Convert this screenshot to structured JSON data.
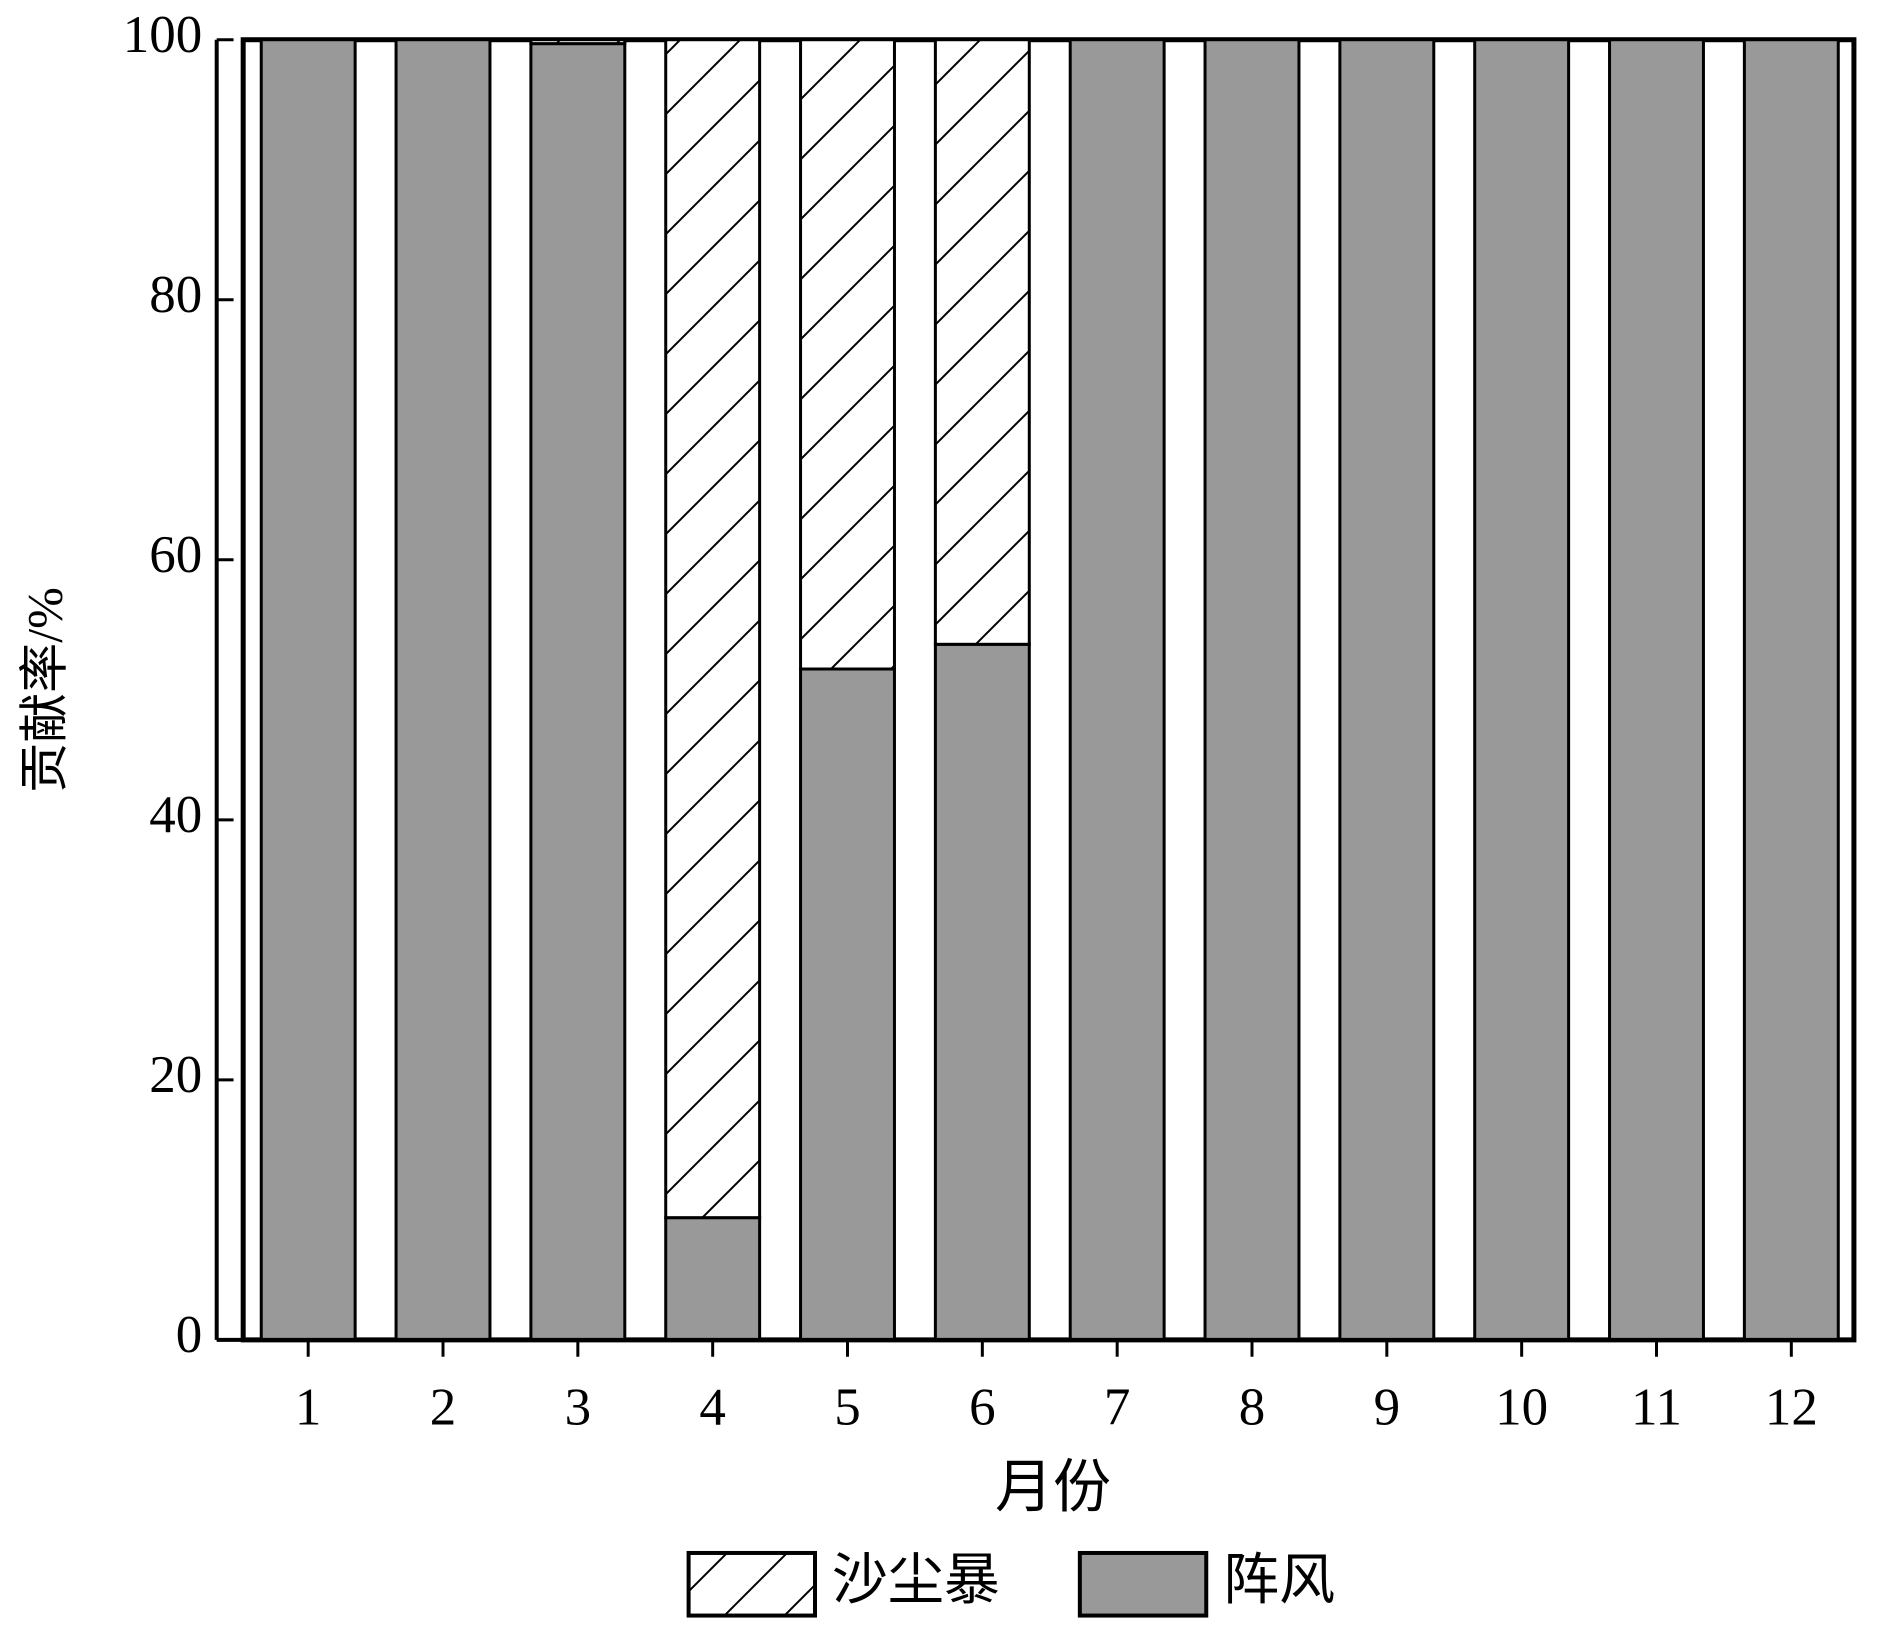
{
  "chart_data": {
    "type": "stacked_bar",
    "x_label": "月份",
    "y_label": "贡献率/%",
    "categories": [
      "1",
      "2",
      "3",
      "4",
      "5",
      "6",
      "7",
      "8",
      "9",
      "10",
      "11",
      "12"
    ],
    "series": [
      {
        "name": "沙尘暴",
        "color": "#ffffff",
        "hatch": true,
        "values": [
          0,
          0,
          0.3,
          90.6,
          48.4,
          46.5,
          0,
          0,
          0,
          0,
          0,
          0
        ]
      },
      {
        "name": "阵风",
        "color": "#999999",
        "hatch": false,
        "values": [
          100,
          100,
          99.7,
          9.4,
          51.6,
          53.5,
          100,
          100,
          100,
          100,
          100,
          100
        ]
      }
    ],
    "ylim": [
      0,
      100
    ],
    "yticks": [
      0,
      20,
      40,
      60,
      80,
      100
    ],
    "legend": "bottom"
  }
}
